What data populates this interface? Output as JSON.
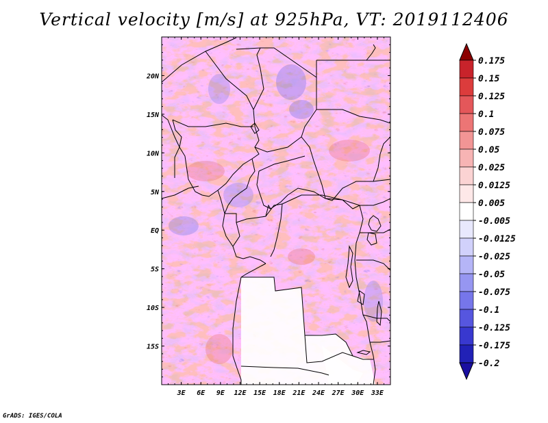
{
  "title": "Vertical velocity [m/s] at 925hPa, VT: 2019112406",
  "footer": "GrADS: IGES/COLA",
  "map": {
    "region": "Central Africa",
    "lon_range": [
      0,
      35
    ],
    "lat_range": [
      -20,
      25
    ],
    "lat_ticks": [
      {
        "value": 20,
        "label": "20N"
      },
      {
        "value": 15,
        "label": "15N"
      },
      {
        "value": 10,
        "label": "10N"
      },
      {
        "value": 5,
        "label": "5N"
      },
      {
        "value": 0,
        "label": "EQ"
      },
      {
        "value": -5,
        "label": "5S"
      },
      {
        "value": -10,
        "label": "10S"
      },
      {
        "value": -15,
        "label": "15S"
      }
    ],
    "lon_ticks": [
      {
        "value": 3,
        "label": "3E"
      },
      {
        "value": 6,
        "label": "6E"
      },
      {
        "value": 9,
        "label": "9E"
      },
      {
        "value": 12,
        "label": "12E"
      },
      {
        "value": 15,
        "label": "15E"
      },
      {
        "value": 18,
        "label": "18E"
      },
      {
        "value": 21,
        "label": "21E"
      },
      {
        "value": 24,
        "label": "24E"
      },
      {
        "value": 27,
        "label": "27E"
      },
      {
        "value": 30,
        "label": "30E"
      },
      {
        "value": 33,
        "label": "33E"
      }
    ],
    "field_colors": {
      "ascent": "#e8706a",
      "descent": "#7a78e8",
      "near_zero": "#ffffff"
    }
  },
  "colorbar": {
    "levels": [
      {
        "label": "0.175",
        "color": "#a50f15"
      },
      {
        "label": "0.15",
        "color": "#c8232b"
      },
      {
        "label": "0.125",
        "color": "#dc3c3c"
      },
      {
        "label": "0.1",
        "color": "#e4575a"
      },
      {
        "label": "0.075",
        "color": "#ec7575"
      },
      {
        "label": "0.05",
        "color": "#f29595"
      },
      {
        "label": "0.025",
        "color": "#f7b4b4"
      },
      {
        "label": "0.0125",
        "color": "#fbd3d3"
      },
      {
        "label": "0.005",
        "color": "#fee8e8"
      },
      {
        "label": "-0.005",
        "color": "#ffffff"
      },
      {
        "label": "-0.0125",
        "color": "#e8e8fd"
      },
      {
        "label": "-0.025",
        "color": "#d1d1fb"
      },
      {
        "label": "-0.05",
        "color": "#b5b5f7"
      },
      {
        "label": "-0.075",
        "color": "#9696f1"
      },
      {
        "label": "-0.1",
        "color": "#7676ea"
      },
      {
        "label": "-0.125",
        "color": "#5656df"
      },
      {
        "label": "-0.175",
        "color": "#3838cf"
      },
      {
        "label": "-0.2",
        "color": "#2121b6"
      }
    ],
    "top_color": "#8b0000",
    "bottom_color": "#1a0fa0"
  }
}
